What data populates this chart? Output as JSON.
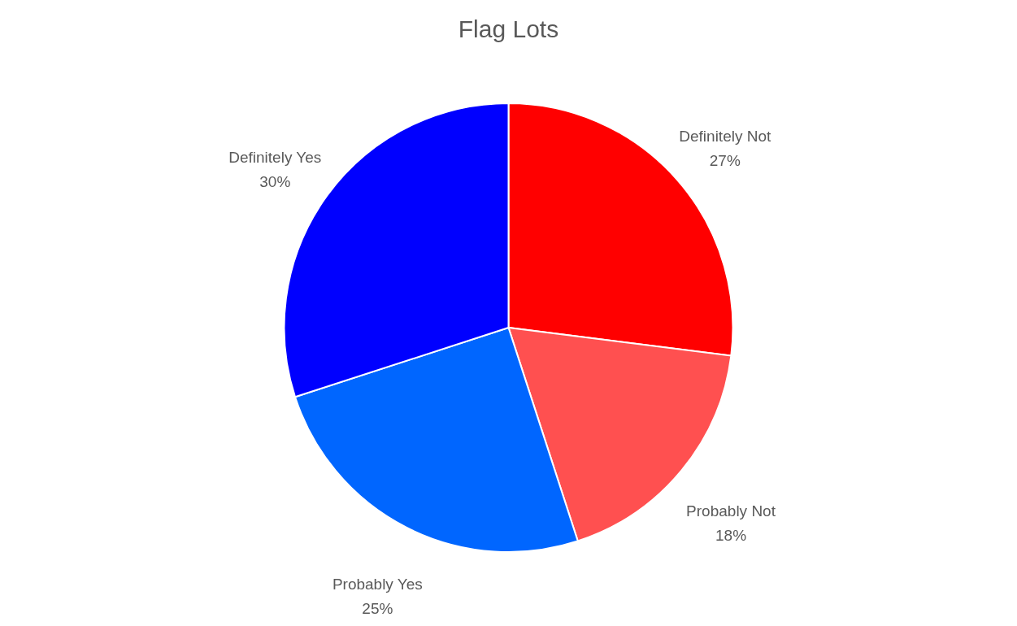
{
  "chart_data": {
    "type": "pie",
    "title": "Flag Lots",
    "categories": [
      "Definitely Not",
      "Probably Not",
      "Probably Yes",
      "Definitely Yes"
    ],
    "values": [
      27,
      18,
      25,
      30
    ],
    "colors": [
      "#ff0000",
      "#ff5050",
      "#0066ff",
      "#0000ff"
    ],
    "value_labels": [
      "27%",
      "18%",
      "25%",
      "30%"
    ],
    "legend": false
  }
}
